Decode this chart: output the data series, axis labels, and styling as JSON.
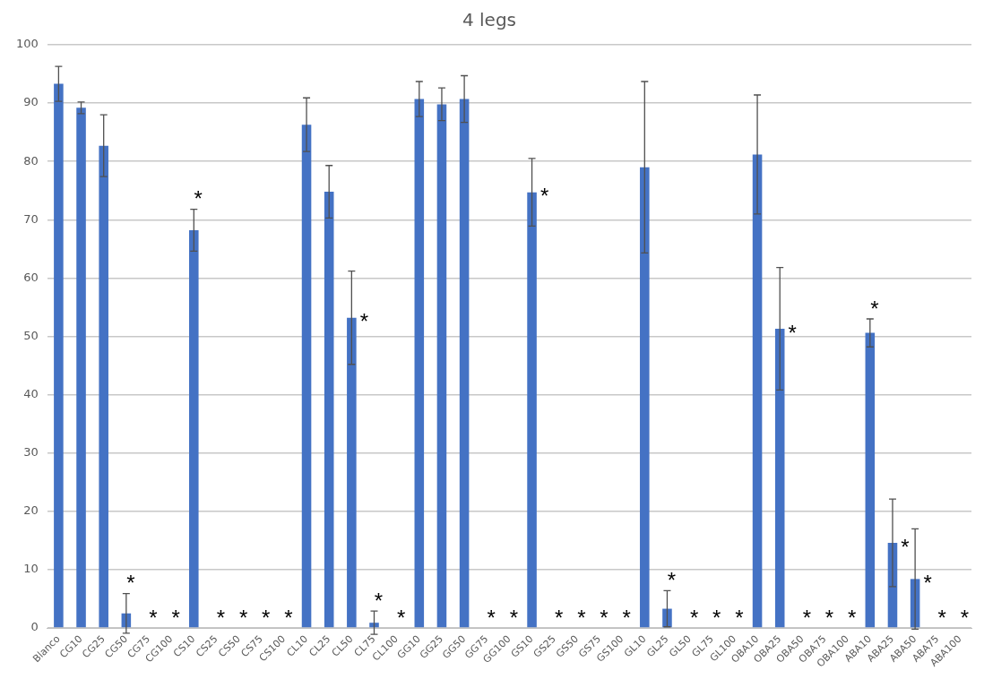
{
  "chart_data": {
    "type": "bar",
    "title": "4 legs",
    "categories": [
      "Blanco",
      "CG10",
      "CG25",
      "CG50",
      "CG75",
      "CG100",
      "CS10",
      "CS25",
      "CS50",
      "CS75",
      "CS100",
      "CL10",
      "CL25",
      "CL50",
      "CL75",
      "CL100",
      "GG10",
      "GG25",
      "GG50",
      "GG75",
      "GG100",
      "GS10",
      "GS25",
      "GS50",
      "GS75",
      "GS100",
      "GL10",
      "GL25",
      "GL50",
      "GL75",
      "GL100",
      "OBA10",
      "OBA25",
      "OBA50",
      "OBA75",
      "OBA100",
      "ABA10",
      "ABA25",
      "ABA50",
      "ABA75",
      "ABA100"
    ],
    "values": [
      93.3,
      89.2,
      82.7,
      2.5,
      0,
      0,
      68.2,
      0,
      0,
      0,
      0,
      86.3,
      74.8,
      53.2,
      0.9,
      0,
      90.7,
      89.8,
      90.7,
      0,
      0,
      74.7,
      0,
      0,
      0,
      0,
      79,
      3.3,
      0,
      0,
      0,
      81.2,
      51.3,
      0,
      0,
      0,
      50.6,
      14.6,
      8.4,
      0,
      0
    ],
    "errors": [
      3,
      1,
      5.3,
      3.4,
      null,
      null,
      3.6,
      null,
      null,
      null,
      null,
      4.6,
      4.5,
      8,
      2,
      null,
      3,
      2.8,
      4,
      null,
      null,
      5.8,
      null,
      null,
      null,
      null,
      14.7,
      3.1,
      null,
      null,
      null,
      10.2,
      10.5,
      null,
      null,
      null,
      2.4,
      7.5,
      8.6,
      null,
      null
    ],
    "color": "#4472c4",
    "ylim": [
      0,
      100
    ],
    "yticks": [
      0,
      10,
      20,
      30,
      40,
      50,
      60,
      70,
      80,
      90,
      100
    ],
    "grid": "y",
    "value_labels": [
      null,
      null,
      null,
      "*",
      "*",
      "*",
      "*",
      "*",
      "*",
      "*",
      "*",
      null,
      null,
      "*",
      "*",
      "*",
      null,
      null,
      null,
      "*",
      "*",
      "*",
      "*",
      "*",
      "*",
      "*",
      null,
      "*",
      "*",
      "*",
      "*",
      null,
      "*",
      "*",
      "*",
      "*",
      "*",
      "*",
      "*",
      "*",
      "*"
    ]
  }
}
